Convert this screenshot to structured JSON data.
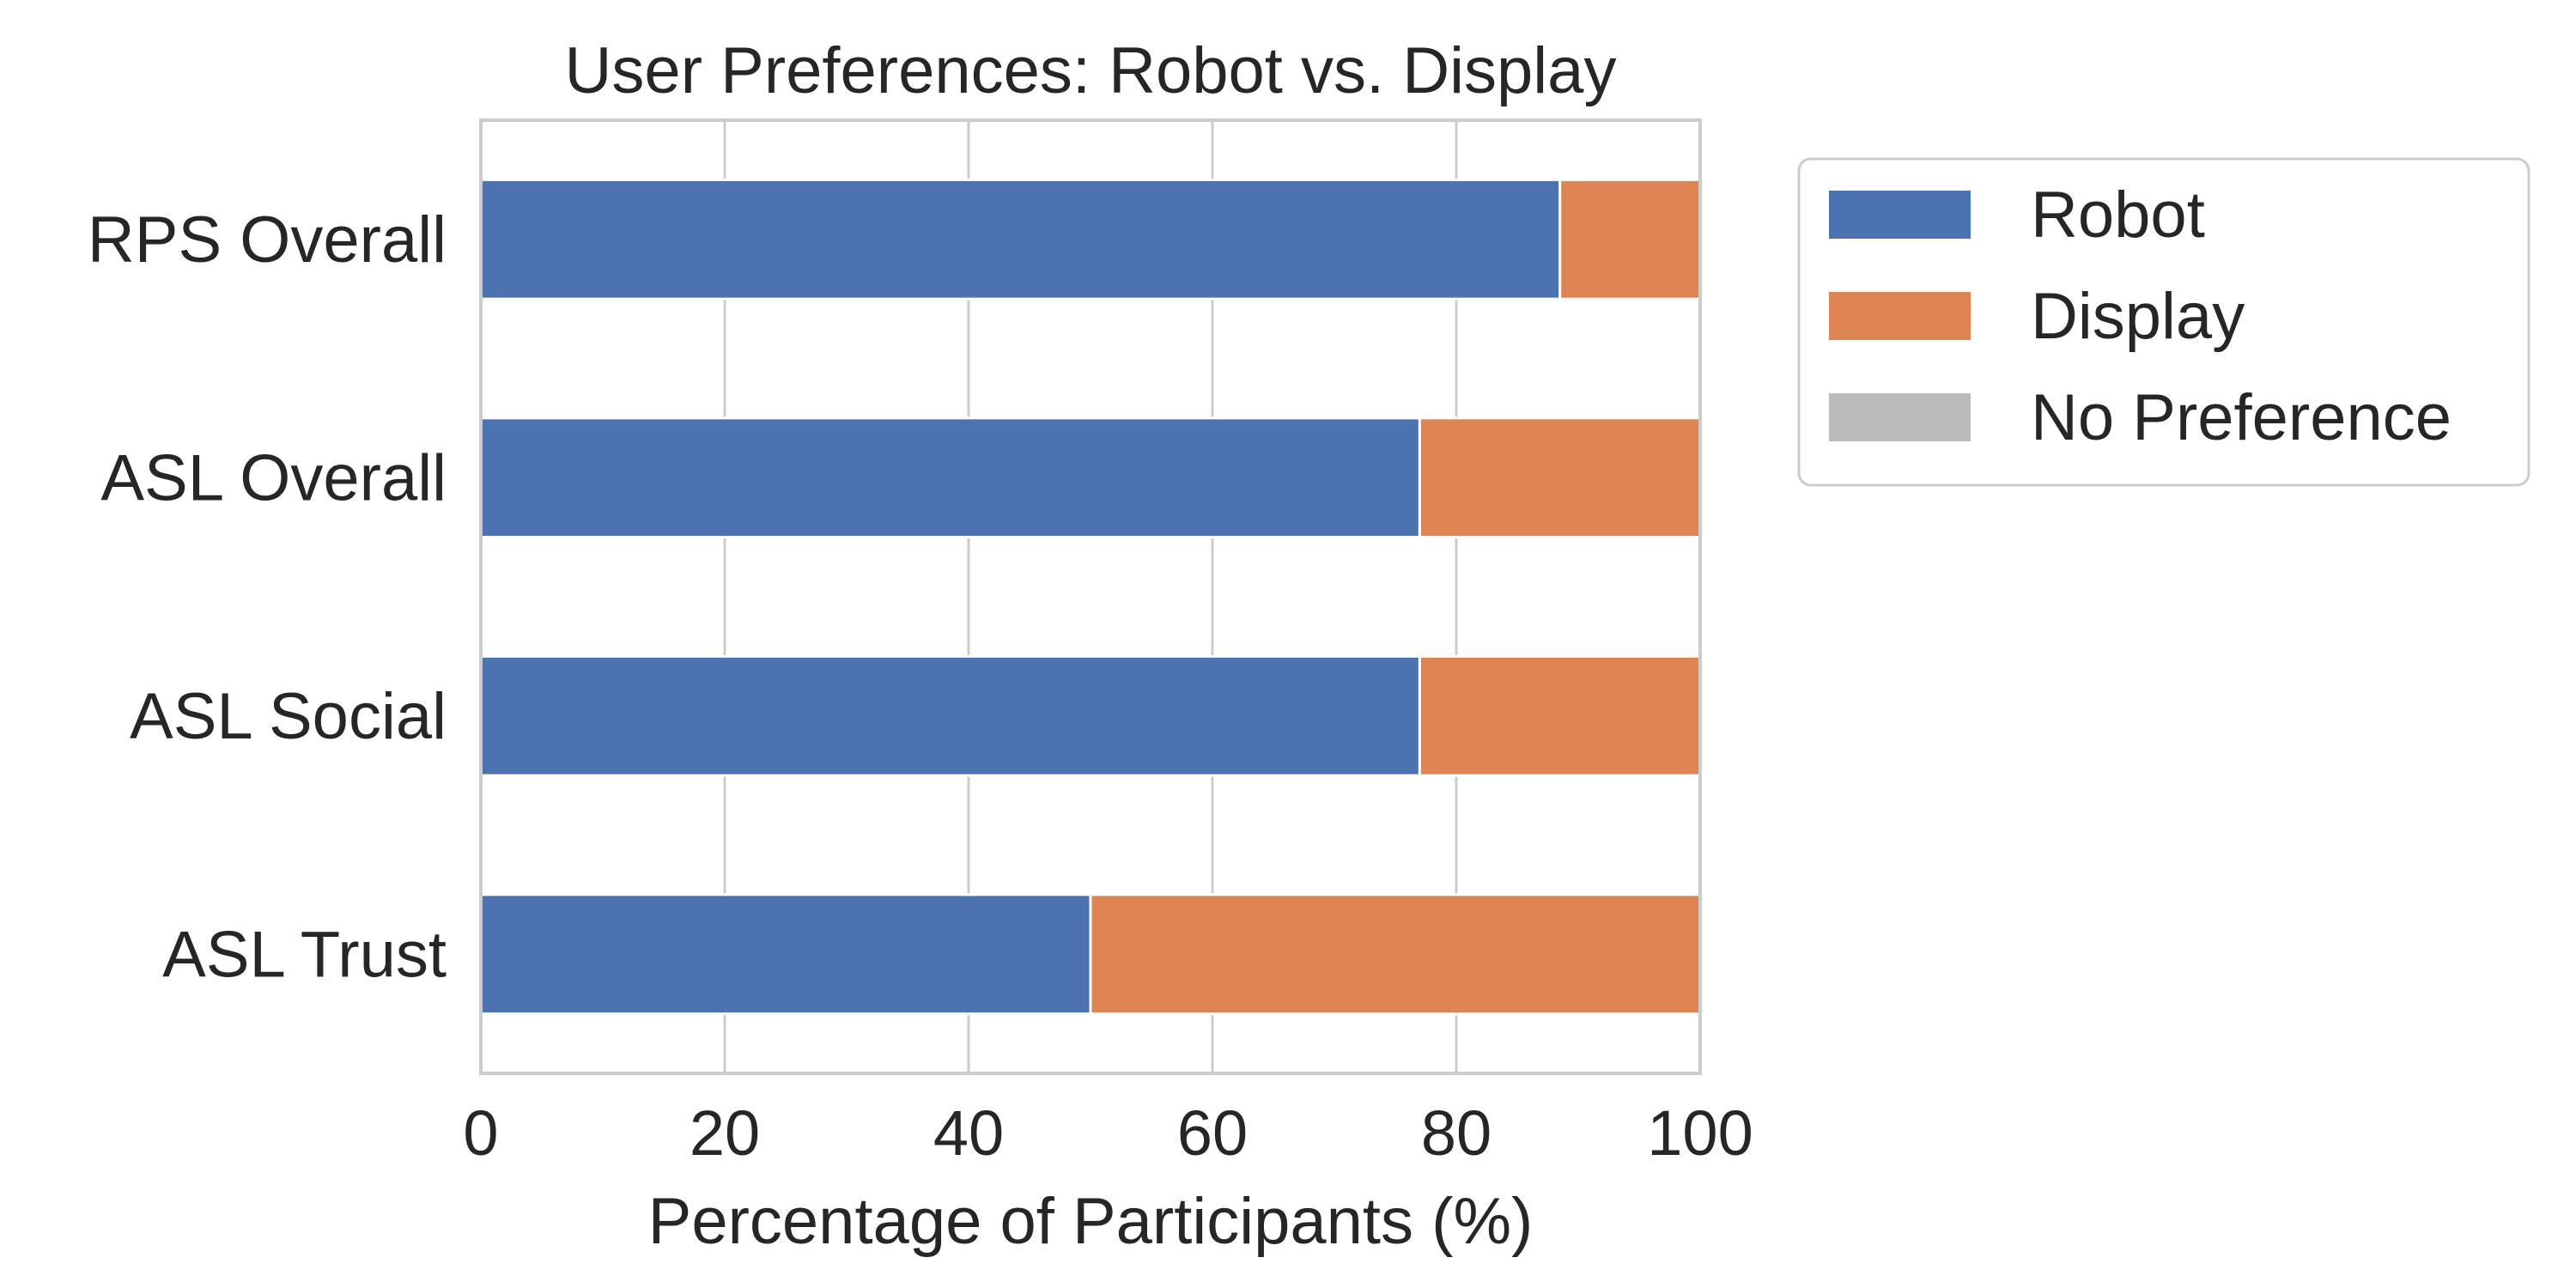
{
  "chart_data": {
    "type": "bar",
    "orientation": "horizontal",
    "stacked": true,
    "title": "User Preferences: Robot vs. Display",
    "xlabel": "Percentage of Participants (%)",
    "ylabel": "",
    "categories": [
      "RPS Overall",
      "ASL Overall",
      "ASL Social",
      "ASL Trust"
    ],
    "series": [
      {
        "name": "Robot",
        "color": "#4c72b0",
        "values": [
          88.5,
          77,
          77,
          50
        ]
      },
      {
        "name": "Display",
        "color": "#dd8452",
        "values": [
          11.5,
          23,
          23,
          50
        ]
      },
      {
        "name": "No Preference",
        "color": "#bbbbbb",
        "values": [
          0,
          0,
          0,
          0
        ]
      }
    ],
    "xlim": [
      0,
      100
    ],
    "xticks": [
      0,
      20,
      40,
      60,
      80,
      100
    ],
    "grid": "vertical",
    "legend": "outside-right-top"
  }
}
